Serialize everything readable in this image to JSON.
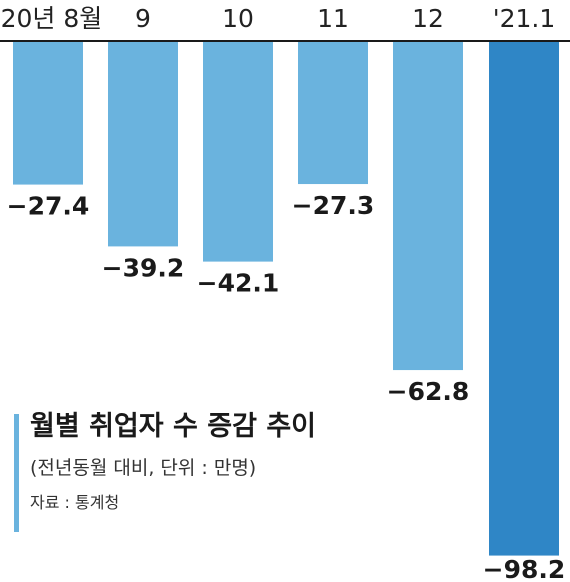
{
  "chart_data": {
    "type": "bar",
    "title": "월별 취업자 수 증감 추이",
    "subtitle": "(전년동월 대비, 단위 : 만명)",
    "source": "자료 : 통계청",
    "categories": [
      "'20년 8월",
      "9",
      "10",
      "11",
      "12",
      "'21.1"
    ],
    "values": [
      -27.4,
      -39.2,
      -42.1,
      -27.3,
      -62.8,
      -98.2
    ],
    "value_labels": [
      "−27.4",
      "−39.2",
      "−42.1",
      "−27.3",
      "−62.8",
      "−98.2"
    ],
    "ylim": [
      -100,
      0
    ],
    "grid": false,
    "colors": {
      "bar": "#6ab3de",
      "highlight_bar": "#2f86c6",
      "baseline": "#1a1a1a"
    }
  }
}
